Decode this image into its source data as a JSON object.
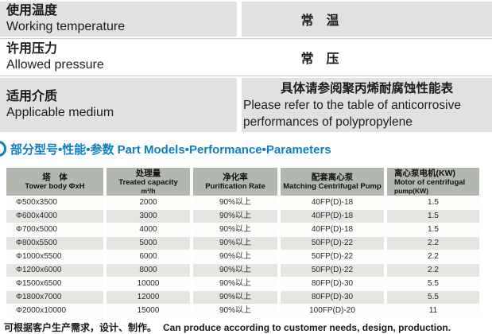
{
  "colors": {
    "accent_blue": "#0d7ec0",
    "spec_cell_gray": "#e1e1df",
    "table_header_gray": "#b2b7af",
    "row_alt_gray": "#e5e5e2"
  },
  "spec_table": {
    "rows": [
      {
        "label_zh": "使用温度",
        "label_en": "Working temperature",
        "value_zh": "常　温"
      },
      {
        "label_zh": "许用压力",
        "label_en": "Allowed pressure",
        "value_zh": "常　压"
      },
      {
        "label_zh": "适用介质",
        "label_en": "Applicable medium",
        "value_zh": "具体请参阅聚丙烯耐腐蚀性能表",
        "value_en": "Please refer to the table of anticorrosive performances of polypropylene"
      }
    ]
  },
  "section_heading": {
    "label": "部分型号•性能•参数 Part Models•Performance•Parameters"
  },
  "params_table": {
    "header": {
      "col1_zh": "塔　体",
      "col1_en": "Tower body ΦxH",
      "col2_zh": "处理量",
      "col2_en": "Treated capacity",
      "col2_sub": "m³/h",
      "col3_zh": "净化率",
      "col3_en": "Purification Rate",
      "col4_zh": "配套离心泵",
      "col4_en": "Matching Centrifugal Pump",
      "col5_zh": "离心泵电机(KW)",
      "col5_en": "Motor of centrifugal",
      "col5_sub": "pump(KW)"
    },
    "rows": [
      [
        "Φ500x3500",
        "2000",
        "90%以上",
        "40FP(D)-18",
        "1.5"
      ],
      [
        "Φ600x4000",
        "3000",
        "90%以上",
        "40FP(D)-18",
        "1.5"
      ],
      [
        "Φ700x5000",
        "4000",
        "90%以上",
        "40FP(D)-18",
        "1.5"
      ],
      [
        "Φ800x5500",
        "5000",
        "90%以上",
        "50FP(D)-22",
        "2.2"
      ],
      [
        "Φ1000x5500",
        "6000",
        "90%以上",
        "50FP(D)-22",
        "2.2"
      ],
      [
        "Φ1200x6000",
        "8000",
        "90%以上",
        "50FP(D)-22",
        "2.2"
      ],
      [
        "Φ1500x6500",
        "10000",
        "90%以上",
        "80FP(D)-30",
        "5.5"
      ],
      [
        "Φ1800x7000",
        "12000",
        "90%以上",
        "80FP(D)-30",
        "5.5"
      ],
      [
        "Φ2000x10000",
        "15000",
        "90%以上",
        "100FP(D)-20",
        "11"
      ]
    ]
  },
  "footnote": {
    "zh": "可根据客户生产需求，设计、制作。",
    "en": "Can produce according to customer needs, design, production."
  }
}
